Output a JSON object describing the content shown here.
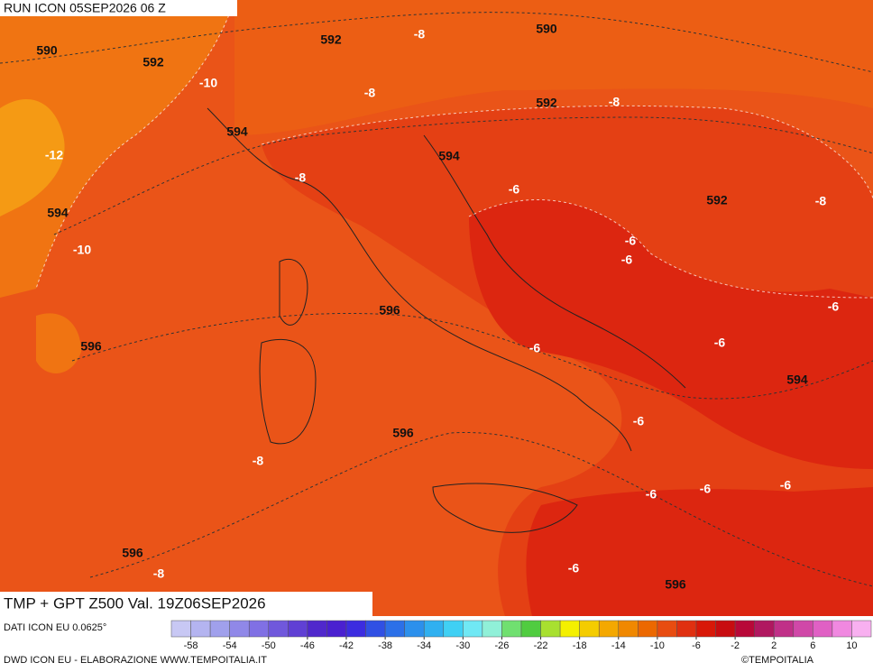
{
  "header": {
    "run": "RUN ICON 05SEP2026 06 Z"
  },
  "map": {
    "title": "TMP + GPT Z500 Val. 19Z06SEP2026",
    "height_labels": [
      "590",
      "592",
      "592",
      "590",
      "594",
      "592",
      "594",
      "592",
      "594",
      "596",
      "596",
      "594",
      "596",
      "596",
      "596"
    ],
    "temp_labels": [
      "-8",
      "-10",
      "-8",
      "-8",
      "-12",
      "-8",
      "-6",
      "-8",
      "-6",
      "-6",
      "-10",
      "-6",
      "-6",
      "-6",
      "-6",
      "-8",
      "-6",
      "-6",
      "-6",
      "-6",
      "-8"
    ]
  },
  "colorbar": {
    "source": "DATI ICON EU 0.0625°",
    "lim": [
      -60,
      12
    ],
    "colors": [
      "#c8c8f4",
      "#b4b4f0",
      "#a0a0ec",
      "#9088e8",
      "#8070e4",
      "#7058dc",
      "#6040d4",
      "#5028cc",
      "#4a20d0",
      "#3c2ce0",
      "#3050e4",
      "#2c70e8",
      "#2c90ec",
      "#30b0f0",
      "#40d0f4",
      "#70e8f4",
      "#90f0d8",
      "#70e070",
      "#50cc40",
      "#a8e030",
      "#f4f000",
      "#f4cc00",
      "#f4a800",
      "#f08800",
      "#ec6800",
      "#e84c10",
      "#e03010",
      "#d81808",
      "#c80c10",
      "#b80838",
      "#b01860",
      "#c03088",
      "#d048a8",
      "#e060c4",
      "#f088e0",
      "#f8b0f0"
    ],
    "ticks": [
      -58,
      -54,
      -50,
      -46,
      -42,
      -38,
      -34,
      -30,
      -26,
      -22,
      -18,
      -14,
      -10,
      -6,
      -2,
      2,
      6,
      10
    ]
  },
  "footer": {
    "credit": "DWD ICON EU - ELABORAZIONE WWW.TEMPOITALIA.IT",
    "copyright": "©TEMPOITALIA"
  }
}
